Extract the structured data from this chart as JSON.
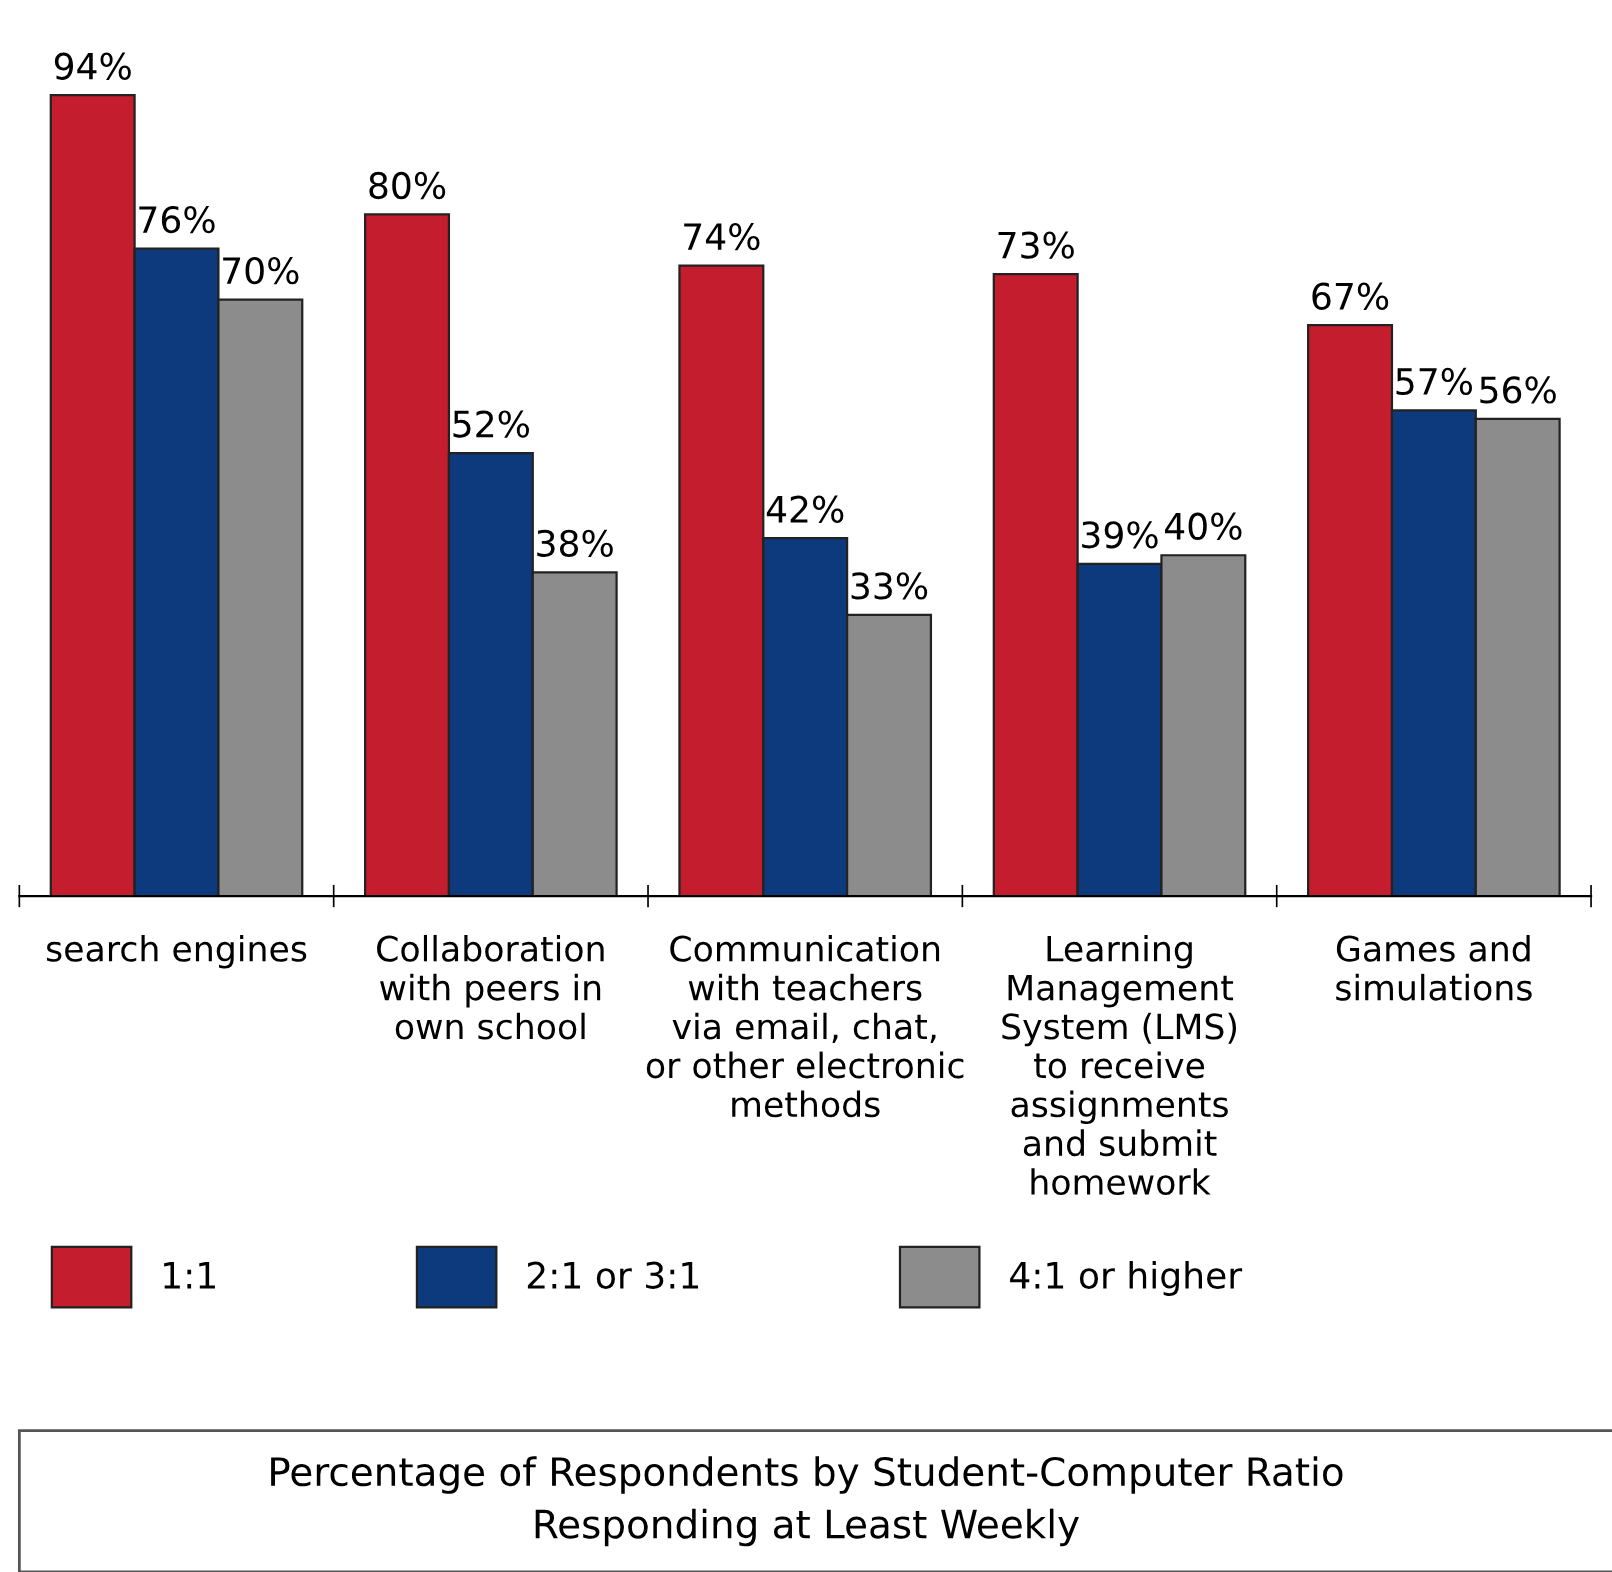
{
  "chart_data": {
    "type": "bar",
    "title": "Percentage of Respondents by Student-Computer Ratio\nResponding at Least Weekly",
    "categories": [
      "search engines",
      "Collaboration\nwith peers in\nown school",
      "Communication\nwith teachers\nvia email, chat,\nor other electronic\nmethods",
      "Learning\nManagement\nSystem (LMS)\nto receive\nassignments\nand submit\nhomework",
      "Games and\nsimulations"
    ],
    "series": [
      {
        "name": "1:1",
        "color": "#c41e2e",
        "values": [
          94,
          80,
          74,
          73,
          67
        ],
        "value_labels": [
          "94%",
          "80%",
          "74%",
          "73%",
          "67%"
        ]
      },
      {
        "name": "2:1 or 3:1",
        "color": "#0d3a7d",
        "values": [
          76,
          52,
          42,
          39,
          57
        ],
        "value_labels": [
          "76%",
          "52%",
          "42%",
          "39%",
          "57%"
        ]
      },
      {
        "name": "4:1 or higher",
        "color": "#8c8c8c",
        "values": [
          70,
          38,
          33,
          40,
          56
        ],
        "value_labels": [
          "70%",
          "38%",
          "33%",
          "40%",
          "56%"
        ]
      }
    ],
    "legend": "bottom left",
    "grid": false
  }
}
